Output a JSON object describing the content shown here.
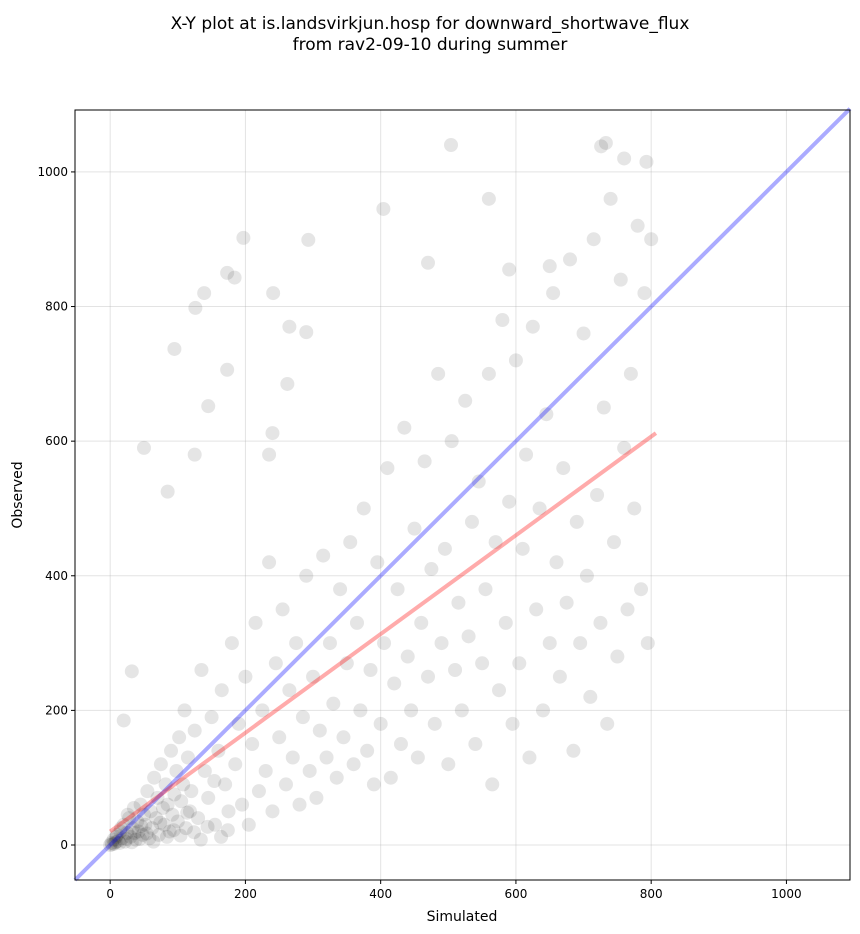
{
  "chart_data": {
    "type": "scatter",
    "title_line1": "X-Y plot at is.landsvirkjun.hosp for downward_shortwave_flux",
    "title_line2": "from rav2-09-10 during summer",
    "xlabel": "Simulated",
    "ylabel": "Observed",
    "xlim": [
      -52,
      1094
    ],
    "ylim": [
      -52,
      1092
    ],
    "xticks": [
      0,
      200,
      400,
      600,
      800,
      1000
    ],
    "yticks": [
      0,
      200,
      400,
      600,
      800,
      1000
    ],
    "grid": true,
    "point_color": "#000000",
    "identity_line": {
      "color": "#0000ff",
      "from": [
        -52,
        -52
      ],
      "to": [
        1094,
        1094
      ]
    },
    "regression_line": {
      "color": "#ff0000",
      "from": [
        0,
        20
      ],
      "to": [
        807,
        612
      ]
    },
    "points": [
      [
        0,
        0
      ],
      [
        2,
        3
      ],
      [
        5,
        8
      ],
      [
        8,
        4
      ],
      [
        10,
        15
      ],
      [
        12,
        6
      ],
      [
        15,
        20
      ],
      [
        18,
        10
      ],
      [
        20,
        30
      ],
      [
        22,
        5
      ],
      [
        25,
        18
      ],
      [
        28,
        40
      ],
      [
        30,
        12
      ],
      [
        33,
        25
      ],
      [
        35,
        55
      ],
      [
        38,
        8
      ],
      [
        40,
        35
      ],
      [
        42,
        20
      ],
      [
        45,
        60
      ],
      [
        48,
        15
      ],
      [
        50,
        45
      ],
      [
        52,
        30
      ],
      [
        55,
        80
      ],
      [
        58,
        10
      ],
      [
        60,
        50
      ],
      [
        62,
        25
      ],
      [
        65,
        100
      ],
      [
        68,
        40
      ],
      [
        70,
        70
      ],
      [
        72,
        15
      ],
      [
        75,
        120
      ],
      [
        78,
        55
      ],
      [
        80,
        30
      ],
      [
        82,
        90
      ],
      [
        85,
        60
      ],
      [
        88,
        20
      ],
      [
        90,
        140
      ],
      [
        92,
        45
      ],
      [
        95,
        75
      ],
      [
        98,
        110
      ],
      [
        100,
        35
      ],
      [
        102,
        160
      ],
      [
        105,
        65
      ],
      [
        108,
        90
      ],
      [
        110,
        200
      ],
      [
        112,
        25
      ],
      [
        115,
        130
      ],
      [
        118,
        50
      ],
      [
        120,
        80
      ],
      [
        125,
        170
      ],
      [
        130,
        40
      ],
      [
        135,
        260
      ],
      [
        140,
        110
      ],
      [
        145,
        70
      ],
      [
        150,
        190
      ],
      [
        155,
        30
      ],
      [
        160,
        140
      ],
      [
        165,
        230
      ],
      [
        170,
        90
      ],
      [
        175,
        50
      ],
      [
        180,
        300
      ],
      [
        185,
        120
      ],
      [
        190,
        180
      ],
      [
        195,
        60
      ],
      [
        200,
        250
      ],
      [
        205,
        30
      ],
      [
        210,
        150
      ],
      [
        215,
        330
      ],
      [
        220,
        80
      ],
      [
        225,
        200
      ],
      [
        230,
        110
      ],
      [
        235,
        420
      ],
      [
        240,
        50
      ],
      [
        245,
        270
      ],
      [
        250,
        160
      ],
      [
        255,
        350
      ],
      [
        260,
        90
      ],
      [
        265,
        230
      ],
      [
        270,
        130
      ],
      [
        275,
        300
      ],
      [
        280,
        60
      ],
      [
        285,
        190
      ],
      [
        290,
        400
      ],
      [
        295,
        110
      ],
      [
        300,
        250
      ],
      [
        305,
        70
      ],
      [
        310,
        170
      ],
      [
        315,
        430
      ],
      [
        320,
        130
      ],
      [
        325,
        300
      ],
      [
        330,
        210
      ],
      [
        335,
        100
      ],
      [
        340,
        380
      ],
      [
        345,
        160
      ],
      [
        350,
        270
      ],
      [
        355,
        450
      ],
      [
        360,
        120
      ],
      [
        365,
        330
      ],
      [
        370,
        200
      ],
      [
        375,
        500
      ],
      [
        380,
        140
      ],
      [
        385,
        260
      ],
      [
        390,
        90
      ],
      [
        395,
        420
      ],
      [
        400,
        180
      ],
      [
        405,
        300
      ],
      [
        410,
        560
      ],
      [
        415,
        100
      ],
      [
        420,
        240
      ],
      [
        425,
        380
      ],
      [
        430,
        150
      ],
      [
        435,
        620
      ],
      [
        440,
        280
      ],
      [
        445,
        200
      ],
      [
        450,
        470
      ],
      [
        455,
        130
      ],
      [
        460,
        330
      ],
      [
        465,
        570
      ],
      [
        470,
        250
      ],
      [
        475,
        410
      ],
      [
        480,
        180
      ],
      [
        485,
        700
      ],
      [
        490,
        300
      ],
      [
        495,
        440
      ],
      [
        500,
        120
      ],
      [
        505,
        600
      ],
      [
        510,
        260
      ],
      [
        515,
        360
      ],
      [
        520,
        200
      ],
      [
        525,
        660
      ],
      [
        530,
        310
      ],
      [
        535,
        480
      ],
      [
        540,
        150
      ],
      [
        545,
        540
      ],
      [
        550,
        270
      ],
      [
        555,
        380
      ],
      [
        560,
        700
      ],
      [
        565,
        90
      ],
      [
        570,
        450
      ],
      [
        575,
        230
      ],
      [
        580,
        780
      ],
      [
        585,
        330
      ],
      [
        590,
        510
      ],
      [
        595,
        180
      ],
      [
        600,
        720
      ],
      [
        605,
        270
      ],
      [
        610,
        440
      ],
      [
        615,
        580
      ],
      [
        620,
        130
      ],
      [
        625,
        770
      ],
      [
        630,
        350
      ],
      [
        635,
        500
      ],
      [
        640,
        200
      ],
      [
        645,
        640
      ],
      [
        650,
        300
      ],
      [
        655,
        820
      ],
      [
        660,
        420
      ],
      [
        665,
        250
      ],
      [
        670,
        560
      ],
      [
        675,
        360
      ],
      [
        680,
        870
      ],
      [
        685,
        140
      ],
      [
        690,
        480
      ],
      [
        695,
        300
      ],
      [
        700,
        760
      ],
      [
        705,
        400
      ],
      [
        710,
        220
      ],
      [
        715,
        900
      ],
      [
        720,
        520
      ],
      [
        725,
        330
      ],
      [
        730,
        650
      ],
      [
        735,
        180
      ],
      [
        740,
        960
      ],
      [
        745,
        450
      ],
      [
        750,
        280
      ],
      [
        755,
        840
      ],
      [
        760,
        590
      ],
      [
        765,
        350
      ],
      [
        770,
        700
      ],
      [
        775,
        500
      ],
      [
        780,
        920
      ],
      [
        785,
        380
      ],
      [
        790,
        820
      ],
      [
        795,
        300
      ],
      [
        800,
        900
      ],
      [
        504,
        1040
      ],
      [
        793,
        1015
      ],
      [
        733,
        1043
      ],
      [
        726,
        1038
      ],
      [
        404,
        945
      ],
      [
        197,
        902
      ],
      [
        293,
        899
      ],
      [
        173,
        850
      ],
      [
        184,
        843
      ],
      [
        126,
        798
      ],
      [
        139,
        820
      ],
      [
        241,
        820
      ],
      [
        95,
        737
      ],
      [
        173,
        706
      ],
      [
        50,
        590
      ],
      [
        85,
        525
      ],
      [
        125,
        580
      ],
      [
        32,
        258
      ],
      [
        20,
        185
      ],
      [
        265,
        770
      ],
      [
        290,
        762
      ],
      [
        262,
        685
      ],
      [
        560,
        960
      ],
      [
        470,
        865
      ],
      [
        590,
        855
      ],
      [
        760,
        1020
      ],
      [
        650,
        860
      ],
      [
        145,
        652
      ],
      [
        240,
        612
      ],
      [
        235,
        580
      ],
      [
        3,
        1
      ],
      [
        6,
        2
      ],
      [
        9,
        12
      ],
      [
        14,
        3
      ],
      [
        16,
        25
      ],
      [
        24,
        9
      ],
      [
        26,
        45
      ],
      [
        32,
        4
      ],
      [
        36,
        18
      ],
      [
        44,
        9
      ],
      [
        46,
        28
      ],
      [
        54,
        17
      ],
      [
        64,
        5
      ],
      [
        74,
        33
      ],
      [
        84,
        12
      ],
      [
        94,
        22
      ],
      [
        104,
        14
      ],
      [
        114,
        48
      ],
      [
        124,
        19
      ],
      [
        134,
        8
      ],
      [
        144,
        27
      ],
      [
        154,
        95
      ],
      [
        164,
        12
      ],
      [
        174,
        22
      ]
    ]
  }
}
